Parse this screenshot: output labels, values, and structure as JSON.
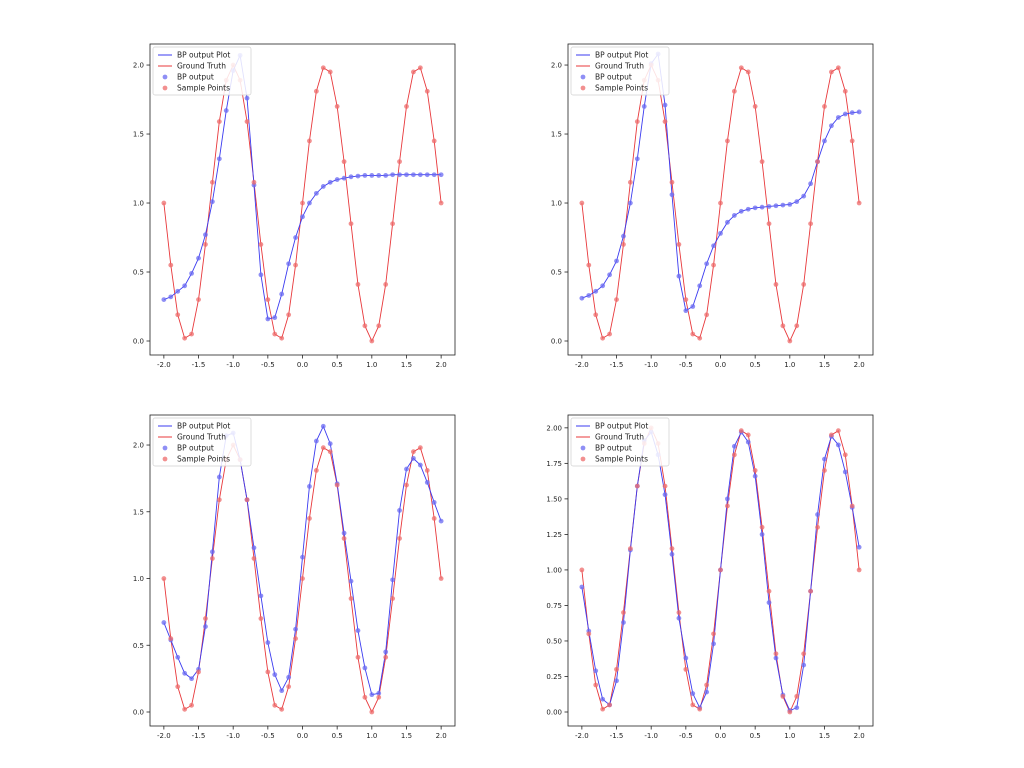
{
  "figure": {
    "colors": {
      "bp": "#3b3bf0",
      "gt": "#e8383b",
      "bp_marker": "#6a6af2",
      "gt_marker": "#ee6b6b"
    }
  },
  "chart_data": [
    {
      "type": "line",
      "title": "",
      "xlabel": "",
      "ylabel": "",
      "xlim": [
        -2.0,
        2.0
      ],
      "ylim": [
        0.0,
        2.08
      ],
      "xticks": [
        "-2.0",
        "-1.5",
        "-1.0",
        "-0.5",
        "0.0",
        "0.5",
        "1.0",
        "1.5",
        "2.0"
      ],
      "yticks": [
        "0.0",
        "0.5",
        "1.0",
        "1.5",
        "2.0"
      ],
      "legend": {
        "position": "top-left",
        "entries": [
          "BP output Plot",
          "Ground Truth",
          "BP output",
          "Sample Points"
        ]
      },
      "x": [
        -2.0,
        -1.9,
        -1.8,
        -1.7,
        -1.6,
        -1.5,
        -1.4,
        -1.3,
        -1.2,
        -1.1,
        -1.0,
        -0.9,
        -0.8,
        -0.7,
        -0.6,
        -0.5,
        -0.4,
        -0.3,
        -0.2,
        -0.1,
        0.0,
        0.1,
        0.2,
        0.3,
        0.4,
        0.5,
        0.6,
        0.7,
        0.8,
        0.9,
        1.0,
        1.1,
        1.2,
        1.3,
        1.4,
        1.5,
        1.6,
        1.7,
        1.8,
        1.9,
        2.0
      ],
      "series": [
        {
          "name": "BP output",
          "values": [
            0.3,
            0.32,
            0.36,
            0.4,
            0.49,
            0.6,
            0.77,
            1.01,
            1.32,
            1.67,
            1.96,
            2.07,
            1.76,
            1.13,
            0.48,
            0.16,
            0.17,
            0.34,
            0.56,
            0.75,
            0.9,
            1.0,
            1.07,
            1.12,
            1.15,
            1.17,
            1.18,
            1.19,
            1.195,
            1.2,
            1.2,
            1.2,
            1.2,
            1.205,
            1.205,
            1.205,
            1.205,
            1.205,
            1.205,
            1.205,
            1.205
          ]
        },
        {
          "name": "Sample Points",
          "values": [
            1.0,
            0.55,
            0.19,
            0.02,
            0.05,
            0.3,
            0.7,
            1.15,
            1.59,
            1.89,
            2.0,
            1.89,
            1.59,
            1.15,
            0.7,
            0.3,
            0.05,
            0.02,
            0.19,
            0.55,
            1.0,
            1.45,
            1.81,
            1.98,
            1.95,
            1.7,
            1.3,
            0.85,
            0.41,
            0.11,
            0.0,
            0.11,
            0.41,
            0.85,
            1.3,
            1.7,
            1.95,
            1.98,
            1.81,
            1.45,
            1.0
          ]
        }
      ]
    },
    {
      "type": "line",
      "title": "",
      "xlabel": "",
      "ylabel": "",
      "xlim": [
        -2.0,
        2.0
      ],
      "ylim": [
        0.0,
        2.08
      ],
      "xticks": [
        "-2.0",
        "-1.5",
        "-1.0",
        "-0.5",
        "0.0",
        "0.5",
        "1.0",
        "1.5",
        "2.0"
      ],
      "yticks": [
        "0.0",
        "0.5",
        "1.0",
        "1.5",
        "2.0"
      ],
      "legend": {
        "position": "top-left",
        "entries": [
          "BP output Plot",
          "Ground Truth",
          "BP output",
          "Sample Points"
        ]
      },
      "x": [
        -2.0,
        -1.9,
        -1.8,
        -1.7,
        -1.6,
        -1.5,
        -1.4,
        -1.3,
        -1.2,
        -1.1,
        -1.0,
        -0.9,
        -0.8,
        -0.7,
        -0.6,
        -0.5,
        -0.4,
        -0.3,
        -0.2,
        -0.1,
        0.0,
        0.1,
        0.2,
        0.3,
        0.4,
        0.5,
        0.6,
        0.7,
        0.8,
        0.9,
        1.0,
        1.1,
        1.2,
        1.3,
        1.4,
        1.5,
        1.6,
        1.7,
        1.8,
        1.9,
        2.0
      ],
      "series": [
        {
          "name": "BP output",
          "values": [
            0.31,
            0.33,
            0.36,
            0.4,
            0.48,
            0.58,
            0.76,
            1.0,
            1.32,
            1.7,
            2.01,
            2.08,
            1.71,
            1.06,
            0.47,
            0.22,
            0.25,
            0.4,
            0.56,
            0.69,
            0.78,
            0.86,
            0.91,
            0.94,
            0.955,
            0.965,
            0.97,
            0.975,
            0.98,
            0.985,
            0.99,
            1.01,
            1.05,
            1.14,
            1.3,
            1.45,
            1.56,
            1.62,
            1.645,
            1.655,
            1.66
          ]
        },
        {
          "name": "Sample Points",
          "values": [
            1.0,
            0.55,
            0.19,
            0.02,
            0.05,
            0.3,
            0.7,
            1.15,
            1.59,
            1.89,
            2.0,
            1.89,
            1.59,
            1.15,
            0.7,
            0.3,
            0.05,
            0.02,
            0.19,
            0.55,
            1.0,
            1.45,
            1.81,
            1.98,
            1.95,
            1.7,
            1.3,
            0.85,
            0.41,
            0.11,
            0.0,
            0.11,
            0.41,
            0.85,
            1.3,
            1.7,
            1.95,
            1.98,
            1.81,
            1.45,
            1.0
          ]
        }
      ]
    },
    {
      "type": "line",
      "title": "",
      "xlabel": "",
      "ylabel": "",
      "xlim": [
        -2.0,
        2.0
      ],
      "ylim": [
        0.0,
        2.15
      ],
      "xticks": [
        "-2.0",
        "-1.5",
        "-1.0",
        "-0.5",
        "0.0",
        "0.5",
        "1.0",
        "1.5",
        "2.0"
      ],
      "yticks": [
        "0.0",
        "0.5",
        "1.0",
        "1.5",
        "2.0"
      ],
      "legend": {
        "position": "top-left",
        "entries": [
          "BP output Plot",
          "Ground Truth",
          "BP output",
          "Sample Points"
        ]
      },
      "x": [
        -2.0,
        -1.9,
        -1.8,
        -1.7,
        -1.6,
        -1.5,
        -1.4,
        -1.3,
        -1.2,
        -1.1,
        -1.0,
        -0.9,
        -0.8,
        -0.7,
        -0.6,
        -0.5,
        -0.4,
        -0.3,
        -0.2,
        -0.1,
        0.0,
        0.1,
        0.2,
        0.3,
        0.4,
        0.5,
        0.6,
        0.7,
        0.8,
        0.9,
        1.0,
        1.1,
        1.2,
        1.3,
        1.4,
        1.5,
        1.6,
        1.7,
        1.8,
        1.9,
        2.0
      ],
      "series": [
        {
          "name": "BP output",
          "values": [
            0.67,
            0.54,
            0.41,
            0.29,
            0.25,
            0.32,
            0.64,
            1.2,
            1.76,
            2.07,
            2.09,
            1.89,
            1.59,
            1.23,
            0.87,
            0.52,
            0.28,
            0.16,
            0.26,
            0.62,
            1.16,
            1.69,
            2.03,
            2.14,
            2.01,
            1.71,
            1.34,
            0.98,
            0.61,
            0.33,
            0.13,
            0.14,
            0.45,
            0.99,
            1.51,
            1.82,
            1.9,
            1.85,
            1.72,
            1.57,
            1.43
          ]
        },
        {
          "name": "Sample Points",
          "values": [
            1.0,
            0.55,
            0.19,
            0.02,
            0.05,
            0.3,
            0.7,
            1.15,
            1.59,
            1.89,
            2.0,
            1.89,
            1.59,
            1.15,
            0.7,
            0.3,
            0.05,
            0.02,
            0.19,
            0.55,
            1.0,
            1.45,
            1.81,
            1.98,
            1.95,
            1.7,
            1.3,
            0.85,
            0.41,
            0.11,
            0.0,
            0.11,
            0.41,
            0.85,
            1.3,
            1.7,
            1.95,
            1.98,
            1.81,
            1.45,
            1.0
          ]
        }
      ]
    },
    {
      "type": "line",
      "title": "",
      "xlabel": "",
      "ylabel": "",
      "xlim": [
        -2.0,
        2.0
      ],
      "ylim": [
        0.0,
        2.02
      ],
      "xticks": [
        "-2.0",
        "-1.5",
        "-1.0",
        "-0.5",
        "0.0",
        "0.5",
        "1.0",
        "1.5",
        "2.0"
      ],
      "yticks": [
        "0.00",
        "0.25",
        "0.50",
        "0.75",
        "1.00",
        "1.25",
        "1.50",
        "1.75",
        "2.00"
      ],
      "legend": {
        "position": "top-left",
        "entries": [
          "BP output Plot",
          "Ground Truth",
          "BP output",
          "Sample Points"
        ]
      },
      "x": [
        -2.0,
        -1.9,
        -1.8,
        -1.7,
        -1.6,
        -1.5,
        -1.4,
        -1.3,
        -1.2,
        -1.1,
        -1.0,
        -0.9,
        -0.8,
        -0.7,
        -0.6,
        -0.5,
        -0.4,
        -0.3,
        -0.2,
        -0.1,
        0.0,
        0.1,
        0.2,
        0.3,
        0.4,
        0.5,
        0.6,
        0.7,
        0.8,
        0.9,
        1.0,
        1.1,
        1.2,
        1.3,
        1.4,
        1.5,
        1.6,
        1.7,
        1.8,
        1.9,
        2.0
      ],
      "series": [
        {
          "name": "BP output",
          "values": [
            0.88,
            0.57,
            0.29,
            0.09,
            0.05,
            0.22,
            0.63,
            1.14,
            1.59,
            1.91,
            1.97,
            1.81,
            1.53,
            1.11,
            0.66,
            0.38,
            0.13,
            0.03,
            0.14,
            0.48,
            1.0,
            1.5,
            1.87,
            1.97,
            1.9,
            1.66,
            1.25,
            0.77,
            0.38,
            0.12,
            0.01,
            0.03,
            0.33,
            0.85,
            1.39,
            1.78,
            1.94,
            1.88,
            1.69,
            1.44,
            1.16
          ]
        },
        {
          "name": "Sample Points",
          "values": [
            1.0,
            0.55,
            0.19,
            0.02,
            0.05,
            0.3,
            0.7,
            1.15,
            1.59,
            1.89,
            2.0,
            1.89,
            1.59,
            1.15,
            0.7,
            0.3,
            0.05,
            0.02,
            0.19,
            0.55,
            1.0,
            1.45,
            1.81,
            1.98,
            1.95,
            1.7,
            1.3,
            0.85,
            0.41,
            0.11,
            0.0,
            0.11,
            0.41,
            0.85,
            1.3,
            1.7,
            1.95,
            1.98,
            1.81,
            1.45,
            1.0
          ]
        }
      ]
    }
  ]
}
